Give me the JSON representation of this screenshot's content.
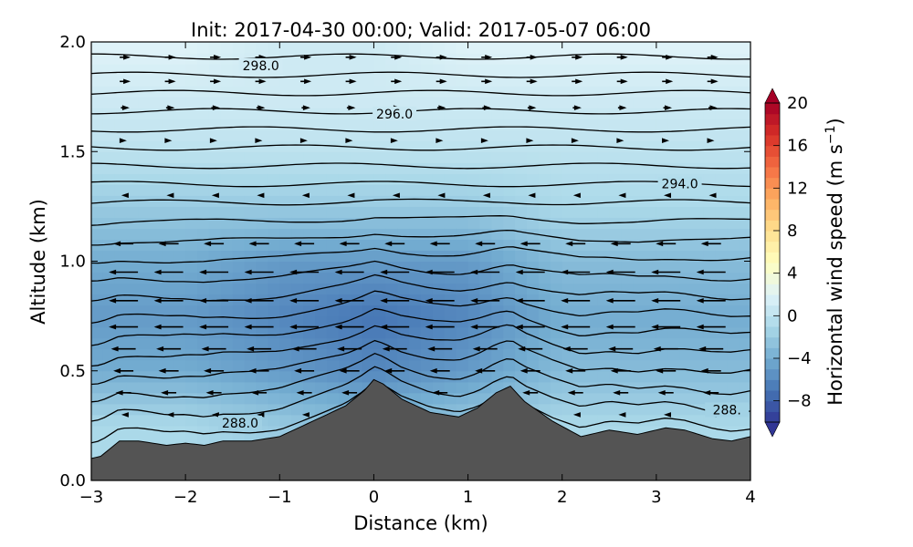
{
  "chart_data": {
    "type": "contour-cross-section",
    "title": "Init: 2017-04-30 00:00; Valid: 2017-05-07 06:00",
    "xlabel": "Distance (km)",
    "ylabel": "Altitude (km)",
    "xlim": [
      -3,
      4
    ],
    "ylim": [
      0.0,
      2.0
    ],
    "x_ticks": [
      -3,
      -2,
      -1,
      0,
      1,
      2,
      3,
      4
    ],
    "x_tick_labels": [
      "−3",
      "−2",
      "−1",
      "0",
      "1",
      "2",
      "3",
      "4"
    ],
    "y_ticks": [
      0.0,
      0.5,
      1.0,
      1.5,
      2.0
    ],
    "y_tick_labels": [
      "0.0",
      "0.5",
      "1.0",
      "1.5",
      "2.0"
    ],
    "colorbar": {
      "label": "Horizontal wind speed (m s",
      "label_exponent": "−1",
      "label_close": ")",
      "range": [
        -10,
        20
      ],
      "ticks": [
        20,
        16,
        12,
        8,
        4,
        0,
        -4,
        -8
      ],
      "tick_labels": [
        "20",
        "16",
        "12",
        "8",
        "4",
        "0",
        "−4",
        "−8"
      ],
      "colors": [
        "#313695",
        "#4575b4",
        "#74add1",
        "#abd9e9",
        "#e0f3f8",
        "#ffffbf",
        "#fee090",
        "#fdae61",
        "#f46d43",
        "#d73027",
        "#a50026"
      ]
    },
    "terrain": {
      "x_km": [
        -3.0,
        -2.9,
        -2.7,
        -2.5,
        -2.2,
        -2.0,
        -1.8,
        -1.6,
        -1.3,
        -1.0,
        -0.6,
        -0.3,
        -0.1,
        0.0,
        0.1,
        0.3,
        0.6,
        0.9,
        1.1,
        1.3,
        1.45,
        1.6,
        1.9,
        2.2,
        2.5,
        2.8,
        3.1,
        3.3,
        3.6,
        3.8,
        4.0
      ],
      "altitude_km": [
        0.1,
        0.11,
        0.18,
        0.18,
        0.16,
        0.17,
        0.16,
        0.18,
        0.18,
        0.2,
        0.28,
        0.34,
        0.41,
        0.46,
        0.44,
        0.37,
        0.31,
        0.29,
        0.33,
        0.4,
        0.43,
        0.36,
        0.27,
        0.2,
        0.23,
        0.21,
        0.24,
        0.23,
        0.19,
        0.18,
        0.2
      ],
      "color": "#545454"
    },
    "theta_contours": {
      "levels_K": [
        288.0,
        288.5,
        289.0,
        289.5,
        290.0,
        290.5,
        291.0,
        291.5,
        292.0,
        292.5,
        293.0,
        293.5,
        294.0,
        294.5,
        295.0,
        295.5,
        296.0,
        296.5,
        297.0,
        297.5,
        298.0,
        298.5
      ],
      "labels": [
        {
          "text": "298.0",
          "x_km": -1.2,
          "y_km": 1.88
        },
        {
          "text": "296.0",
          "x_km": 0.22,
          "y_km": 1.66
        },
        {
          "text": "294.0",
          "x_km": 3.25,
          "y_km": 1.34
        },
        {
          "text": "288.0",
          "x_km": -1.42,
          "y_km": 0.25
        },
        {
          "text": "288.",
          "x_km": 3.75,
          "y_km": 0.31
        }
      ]
    },
    "wind_speed_field": {
      "units": "m s^-1",
      "x_km": [
        -3,
        -2,
        -1,
        0,
        1,
        2,
        3,
        4
      ],
      "altitude_km": [
        0.25,
        0.5,
        0.75,
        1.0,
        1.25,
        1.5,
        1.75,
        2.0
      ],
      "values": [
        [
          -1,
          -1,
          -2,
          -3,
          -2,
          -1,
          -1,
          -1
        ],
        [
          -4,
          -4,
          -5,
          -6,
          -5,
          -3,
          -3,
          -3
        ],
        [
          -5,
          -5,
          -6,
          -7,
          -6,
          -4,
          -4,
          -4
        ],
        [
          -4,
          -4,
          -5,
          -5,
          -5,
          -3,
          -3,
          -3
        ],
        [
          -2,
          -2,
          -2,
          -2,
          -2,
          -1,
          -1,
          -1
        ],
        [
          0,
          0,
          0,
          0,
          0,
          0,
          0,
          0
        ],
        [
          1,
          1,
          1,
          1,
          1,
          1,
          1,
          1
        ],
        [
          2,
          2,
          1,
          1,
          2,
          2,
          2,
          2
        ]
      ]
    },
    "wind_vectors": {
      "altitudes_km": [
        0.3,
        0.4,
        0.5,
        0.6,
        0.7,
        0.82,
        0.95,
        1.08,
        1.3,
        1.55,
        1.7,
        1.82,
        1.93
      ],
      "u_m_s": [
        -0.5,
        -3,
        -4,
        -5,
        -6,
        -6,
        -6,
        -4,
        -0.5,
        0.3,
        1.5,
        2,
        2
      ]
    }
  }
}
